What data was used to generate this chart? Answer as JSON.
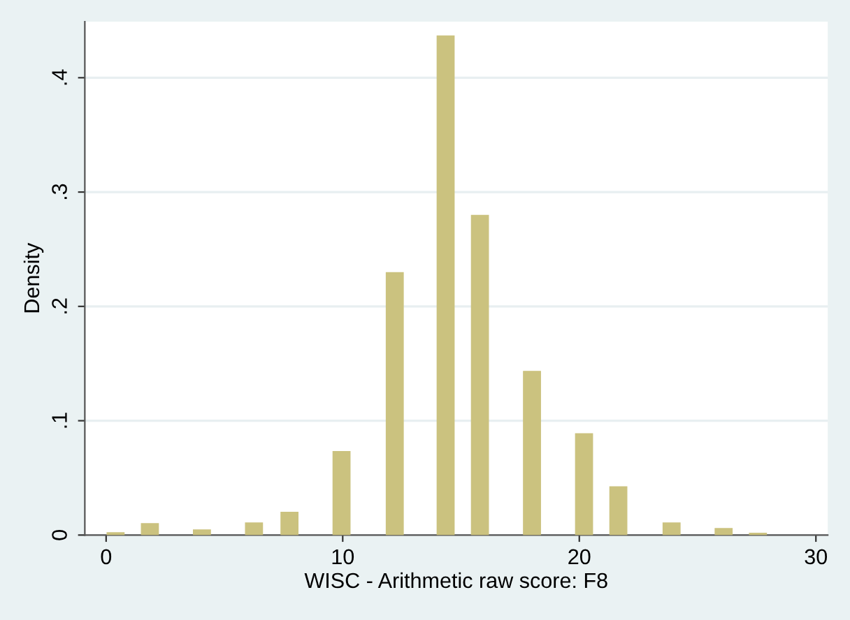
{
  "chart_data": {
    "type": "bar",
    "xlabel": "WISC - Arithmetic raw score: F8",
    "ylabel": "Density",
    "x": [
      0.4,
      1.85,
      4.05,
      6.25,
      7.75,
      9.95,
      12.2,
      14.35,
      15.8,
      18.0,
      20.2,
      21.65,
      23.9,
      26.1,
      27.55
    ],
    "values": [
      0.002,
      0.01,
      0.0045,
      0.0106,
      0.02,
      0.073,
      0.2295,
      0.4366,
      0.2796,
      0.1432,
      0.0887,
      0.0423,
      0.0106,
      0.0057,
      0.0016
    ],
    "color": "#cbc27f",
    "xlim": [
      -0.9,
      30.5
    ],
    "xticks": [
      0,
      10,
      20,
      30
    ],
    "ylim": [
      0,
      0.449
    ],
    "yticks": [
      {
        "value": 0,
        "label": "0"
      },
      {
        "value": 0.1,
        "label": ".1"
      },
      {
        "value": 0.2,
        "label": ".2"
      },
      {
        "value": 0.3,
        "label": ".3"
      },
      {
        "value": 0.4,
        "label": ".4"
      }
    ],
    "grid": "y"
  }
}
